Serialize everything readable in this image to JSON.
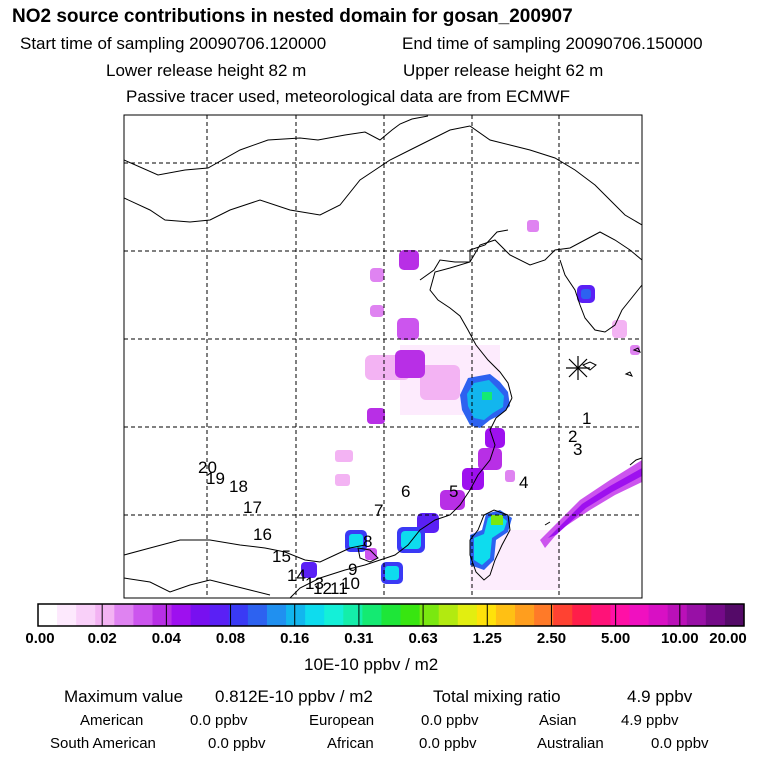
{
  "header": {
    "title": "NO2 source contributions in nested domain for gosan_200907",
    "start_time": "Start time of sampling 20090706.120000",
    "end_time": "End time of sampling 20090706.150000",
    "lower_height": "Lower release height   82 m",
    "upper_height": "Upper release height   62 m",
    "tracer_note": "Passive tracer used, meteorological data are from ECMWF"
  },
  "map": {
    "station_labels": [
      "1",
      "2",
      "3",
      "4",
      "5",
      "6",
      "7",
      "8",
      "9",
      "10",
      "11",
      "12",
      "13",
      "14",
      "15",
      "16",
      "17",
      "18",
      "19",
      "20"
    ],
    "station_marker": "asterisk-star"
  },
  "legend": {
    "colors": [
      "#ffffff",
      "#fde9fd",
      "#f9d0f9",
      "#f3b3f3",
      "#df83f1",
      "#cc55ee",
      "#b82fe6",
      "#9e10ef",
      "#7810f0",
      "#5a20f5",
      "#3a3af5",
      "#2d62f0",
      "#2090f0",
      "#12b6ee",
      "#0edcee",
      "#14f0d8",
      "#14eeaa",
      "#14ea72",
      "#1ee638",
      "#38e610",
      "#7ae810",
      "#b2ea10",
      "#e2ee10",
      "#ffe20a",
      "#ffc014",
      "#ff9e1e",
      "#ff7a28",
      "#ff4232",
      "#ff1e4a",
      "#ff1278",
      "#ff10a6",
      "#f010c0",
      "#d810c4",
      "#ba10b8",
      "#9810a6",
      "#740a88",
      "#540a68"
    ],
    "tick_labels": [
      "0.00",
      "0.02",
      "0.04",
      "0.08",
      "0.16",
      "0.31",
      "0.63",
      "1.25",
      "2.50",
      "5.00",
      "10.00",
      "20.00"
    ],
    "units": "10E-10 ppbv / m2"
  },
  "summary": {
    "max_label": "Maximum value",
    "max_value": "0.812E-10 ppbv / m2",
    "total_label": "Total mixing ratio",
    "total_value": "4.9 ppbv",
    "regions": [
      {
        "name": "American",
        "value": "0.0 ppbv"
      },
      {
        "name": "European",
        "value": "0.0 ppbv"
      },
      {
        "name": "Asian",
        "value": "4.9 ppbv"
      },
      {
        "name": "South American",
        "value": "0.0 ppbv"
      },
      {
        "name": "African",
        "value": "0.0 ppbv"
      },
      {
        "name": "Australian",
        "value": "0.0 ppbv"
      }
    ]
  }
}
